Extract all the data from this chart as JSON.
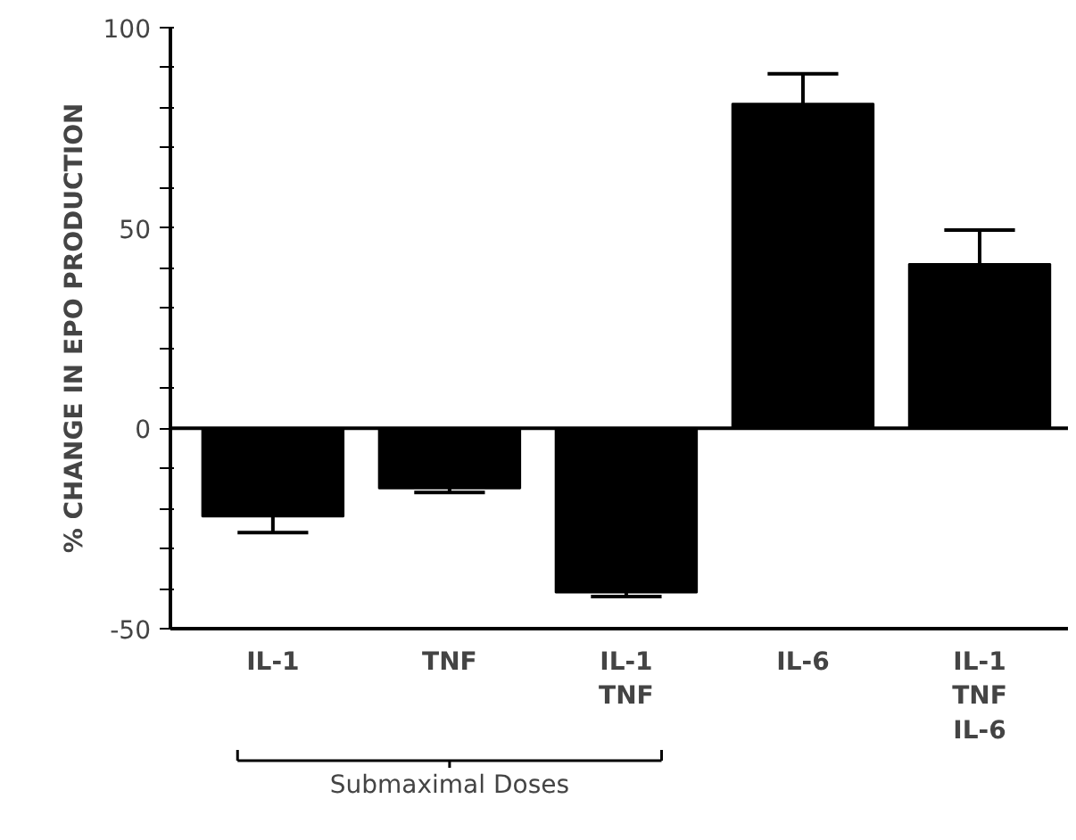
{
  "chart_data": {
    "type": "bar",
    "ylabel": "% CHANGE IN EPO PRODUCTION",
    "categories": [
      "IL-1",
      "TNF",
      "IL-1\nTNF",
      "IL-6",
      "IL-1\nTNF\nIL-6"
    ],
    "values": [
      -22,
      -15,
      -41,
      81,
      41
    ],
    "color": "#000000",
    "errors": [
      [
        -26,
        -22
      ],
      [
        -16,
        -15
      ],
      [
        -42,
        -41
      ],
      [
        81,
        88.5
      ],
      [
        41,
        49.5
      ]
    ],
    "ylim": [
      -50,
      100
    ],
    "yticks": [
      -50,
      {
        "value": -40,
        "label": null
      },
      {
        "value": -30,
        "label": null
      },
      {
        "value": -20,
        "label": null
      },
      {
        "value": -10,
        "label": null
      },
      0,
      {
        "value": 10,
        "label": null
      },
      {
        "value": 20,
        "label": null
      },
      {
        "value": 30,
        "label": null
      },
      {
        "value": 40,
        "label": null
      },
      50,
      {
        "value": 60,
        "label": null
      },
      {
        "value": 70,
        "label": null
      },
      {
        "value": 80,
        "label": null
      },
      {
        "value": 90,
        "label": null
      },
      100
    ],
    "ref_lines": [
      {
        "axis": "y",
        "value": 0,
        "color": "#000000"
      }
    ],
    "annotations": [
      "Submaximal Doses"
    ],
    "grid": false
  }
}
